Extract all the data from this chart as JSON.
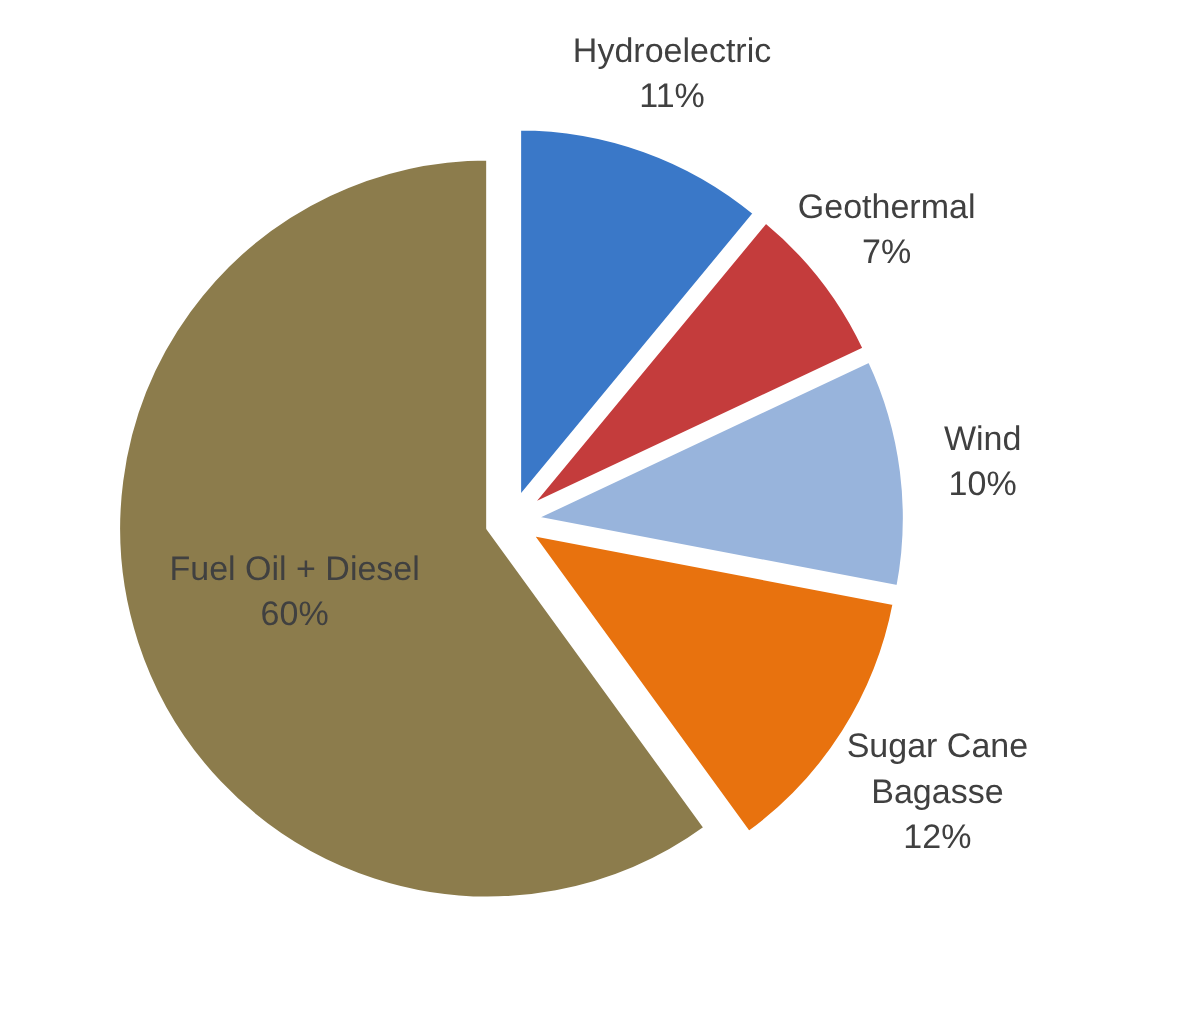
{
  "chart_data": {
    "type": "pie",
    "categories": [
      "Hydroelectric",
      "Geothermal",
      "Wind",
      "Sugar Cane Bagasse",
      "Fuel Oil + Diesel"
    ],
    "values": [
      11,
      7,
      10,
      12,
      60
    ],
    "colors": [
      "#3a78c8",
      "#c43c3c",
      "#98b4dc",
      "#e8720e",
      "#8c7c4c"
    ],
    "value_labels": [
      "11%",
      "7%",
      "10%",
      "12%",
      "60%"
    ]
  }
}
